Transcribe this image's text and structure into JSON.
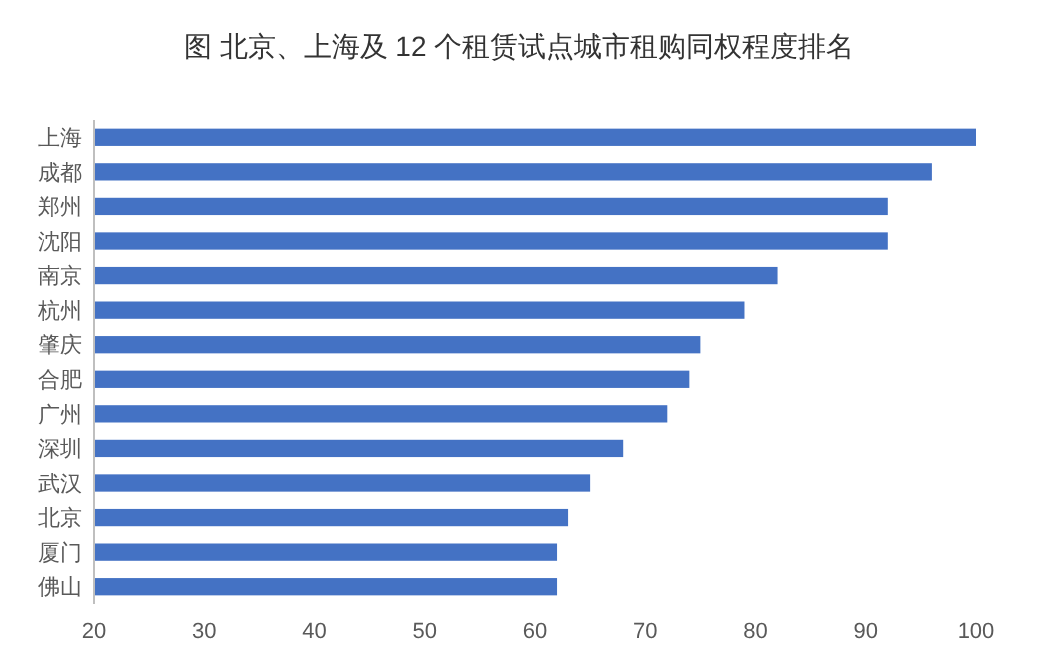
{
  "chart_data": {
    "type": "bar",
    "orientation": "horizontal",
    "title": "图  北京、上海及 12 个租赁试点城市租购同权程度排名",
    "categories": [
      "上海",
      "成都",
      "郑州",
      "沈阳",
      "南京",
      "杭州",
      "肇庆",
      "合肥",
      "广州",
      "深圳",
      "武汉",
      "北京",
      "厦门",
      "佛山"
    ],
    "values": [
      100,
      96,
      92,
      92,
      82,
      79,
      75,
      74,
      72,
      68,
      65,
      63,
      62,
      62
    ],
    "color": "#4472c4",
    "xlim": [
      20,
      100
    ],
    "xticks": [
      20,
      30,
      40,
      50,
      60,
      70,
      80,
      90,
      100
    ],
    "grid": false
  }
}
